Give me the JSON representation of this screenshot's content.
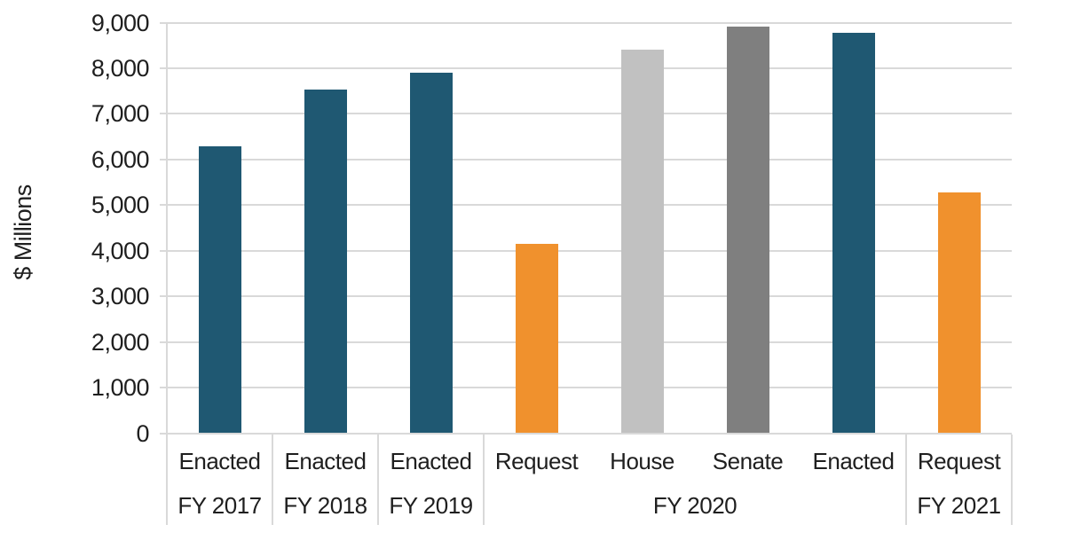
{
  "chart_data": {
    "type": "bar",
    "title": "",
    "ylabel": "$ Millions",
    "xlabel": "",
    "ylim": [
      0,
      9000
    ],
    "grid": true,
    "legend": "none",
    "ytick_values": [
      0,
      1000,
      2000,
      3000,
      4000,
      5000,
      6000,
      7000,
      8000,
      9000
    ],
    "ytick_labels": [
      "0",
      "1,000",
      "2,000",
      "3,000",
      "4,000",
      "5,000",
      "6,000",
      "7,000",
      "8,000",
      "9,000"
    ],
    "categories": [
      "Enacted",
      "Enacted",
      "Enacted",
      "Request",
      "House",
      "Senate",
      "Enacted",
      "Request"
    ],
    "values": [
      6290,
      7530,
      7900,
      4150,
      8410,
      8920,
      8780,
      5280
    ],
    "bar_roles": [
      "enacted",
      "enacted",
      "enacted",
      "request",
      "house",
      "senate",
      "enacted",
      "request"
    ],
    "bar_colors": [
      "#1f5872",
      "#1f5872",
      "#1f5872",
      "#f0912d",
      "#c1c1c1",
      "#7f7f7f",
      "#1f5872",
      "#f0912d"
    ],
    "groups": [
      {
        "label": "FY 2017",
        "span": 1
      },
      {
        "label": "FY 2018",
        "span": 1
      },
      {
        "label": "FY 2019",
        "span": 1
      },
      {
        "label": "FY 2020",
        "span": 4
      },
      {
        "label": "FY 2021",
        "span": 1
      }
    ]
  },
  "colors": {
    "enacted_blue": "#1f5872",
    "request_orange": "#f0912d",
    "house_light_gray": "#c1c1c1",
    "senate_dark_gray": "#7f7f7f",
    "gridline": "#d9d9d9",
    "text": "#1f1f1f",
    "background": "#ffffff"
  }
}
